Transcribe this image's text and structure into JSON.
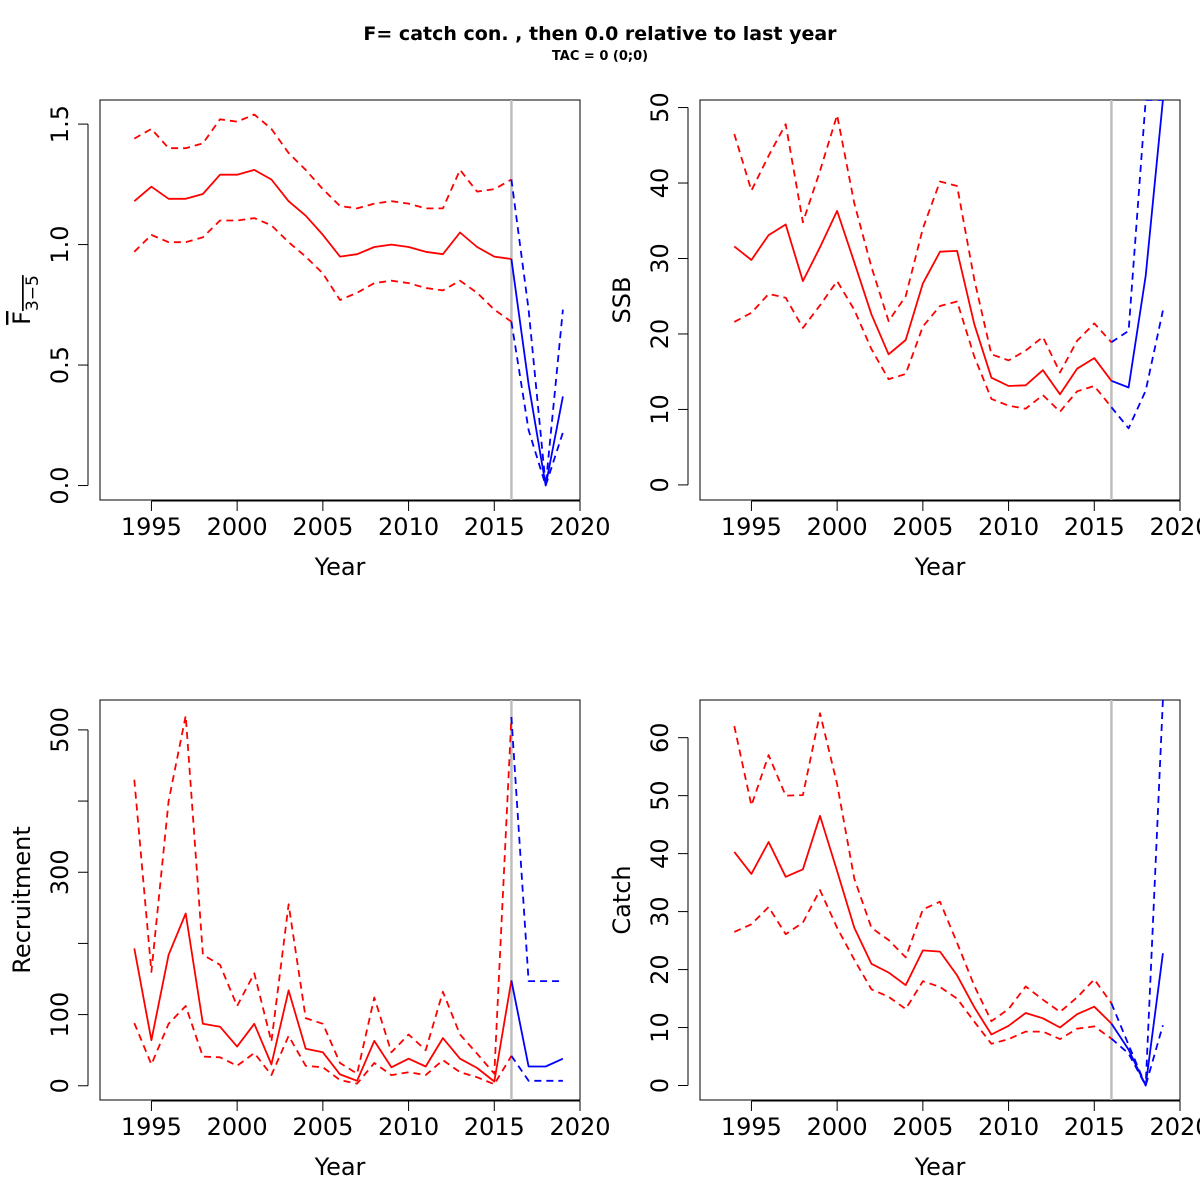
{
  "figure": {
    "title": "F= catch con. , then 0.0  relative to last year",
    "subtitle": "TAC = 0 (0;0)"
  },
  "colors": {
    "historic": "#ff0000",
    "forecast": "#0000ff",
    "divider": "#bebebe",
    "axis": "#000000"
  },
  "chart_data": [
    {
      "id": "fbar",
      "type": "line",
      "ylabel_main": "F",
      "ylabel_sub": "3−5",
      "xlabel": "Year",
      "xlim": [
        1992,
        2020
      ],
      "ylim": [
        -0.06,
        1.6
      ],
      "xticks": [
        1995,
        2000,
        2005,
        2010,
        2015,
        2020
      ],
      "yticks": [
        0,
        0.5,
        1,
        1.5
      ],
      "ytick_labels": [
        "0.0",
        "0.5",
        "1.0",
        "1.5"
      ],
      "divider_year": 2016,
      "series": [
        {
          "role": "historic",
          "style": "solid",
          "x": [
            1994,
            1995,
            1996,
            1997,
            1998,
            1999,
            2000,
            2001,
            2002,
            2003,
            2004,
            2005,
            2006,
            2007,
            2008,
            2009,
            2010,
            2011,
            2012,
            2013,
            2014,
            2015,
            2016
          ],
          "values": [
            1.18,
            1.24,
            1.19,
            1.19,
            1.21,
            1.29,
            1.29,
            1.31,
            1.27,
            1.18,
            1.12,
            1.04,
            0.95,
            0.96,
            0.99,
            1.0,
            0.99,
            0.97,
            0.96,
            1.05,
            0.99,
            0.95,
            0.94
          ]
        },
        {
          "role": "historic",
          "style": "dashed",
          "x": [
            1994,
            1995,
            1996,
            1997,
            1998,
            1999,
            2000,
            2001,
            2002,
            2003,
            2004,
            2005,
            2006,
            2007,
            2008,
            2009,
            2010,
            2011,
            2012,
            2013,
            2014,
            2015,
            2016
          ],
          "values": [
            1.44,
            1.48,
            1.4,
            1.4,
            1.42,
            1.52,
            1.51,
            1.54,
            1.48,
            1.38,
            1.31,
            1.23,
            1.16,
            1.15,
            1.17,
            1.18,
            1.17,
            1.15,
            1.15,
            1.31,
            1.22,
            1.23,
            1.27
          ]
        },
        {
          "role": "historic",
          "style": "dashed",
          "x": [
            1994,
            1995,
            1996,
            1997,
            1998,
            1999,
            2000,
            2001,
            2002,
            2003,
            2004,
            2005,
            2006,
            2007,
            2008,
            2009,
            2010,
            2011,
            2012,
            2013,
            2014,
            2015,
            2016
          ],
          "values": [
            0.97,
            1.04,
            1.01,
            1.01,
            1.03,
            1.1,
            1.1,
            1.11,
            1.08,
            1.01,
            0.95,
            0.88,
            0.77,
            0.8,
            0.84,
            0.85,
            0.84,
            0.82,
            0.81,
            0.85,
            0.8,
            0.73,
            0.68
          ]
        },
        {
          "role": "forecast",
          "style": "solid",
          "x": [
            2016,
            2017,
            2018,
            2019
          ],
          "values": [
            0.94,
            0.42,
            0.0,
            0.37
          ]
        },
        {
          "role": "forecast",
          "style": "dashed",
          "x": [
            2016,
            2017,
            2018,
            2019
          ],
          "values": [
            1.27,
            0.73,
            0.0,
            0.73
          ]
        },
        {
          "role": "forecast",
          "style": "dashed",
          "x": [
            2016,
            2017,
            2018,
            2019
          ],
          "values": [
            0.68,
            0.23,
            0.0,
            0.22
          ]
        }
      ]
    },
    {
      "id": "ssb",
      "type": "line",
      "ylabel_main": "SSB",
      "xlabel": "Year",
      "xlim": [
        1992,
        2020
      ],
      "ylim": [
        -2,
        51
      ],
      "xticks": [
        1995,
        2000,
        2005,
        2010,
        2015,
        2020
      ],
      "yticks": [
        0,
        10,
        20,
        30,
        40,
        50
      ],
      "ytick_labels": [
        "0",
        "10",
        "20",
        "30",
        "40",
        "50"
      ],
      "divider_year": 2016,
      "series": [
        {
          "role": "historic",
          "style": "solid",
          "x": [
            1994,
            1995,
            1996,
            1997,
            1998,
            1999,
            2000,
            2001,
            2002,
            2003,
            2004,
            2005,
            2006,
            2007,
            2008,
            2009,
            2010,
            2011,
            2012,
            2013,
            2014,
            2015,
            2016
          ],
          "values": [
            31.6,
            29.8,
            33.1,
            34.5,
            27.0,
            31.5,
            36.3,
            29.5,
            22.6,
            17.3,
            19.2,
            26.7,
            30.9,
            31.0,
            21.3,
            14.2,
            13.1,
            13.2,
            15.2,
            12.0,
            15.4,
            16.8,
            13.8
          ]
        },
        {
          "role": "historic",
          "style": "dashed",
          "x": [
            1994,
            1995,
            1996,
            1997,
            1998,
            1999,
            2000,
            2001,
            2002,
            2003,
            2004,
            2005,
            2006,
            2007,
            2008,
            2009,
            2010,
            2011,
            2012,
            2013,
            2014,
            2015,
            2016
          ],
          "values": [
            46.5,
            39.0,
            43.6,
            47.8,
            34.8,
            41.6,
            49.0,
            37.3,
            28.9,
            21.7,
            25.0,
            34.0,
            40.2,
            39.6,
            27.2,
            17.3,
            16.5,
            17.8,
            19.6,
            14.9,
            19.1,
            21.4,
            18.9
          ]
        },
        {
          "role": "historic",
          "style": "dashed",
          "x": [
            1994,
            1995,
            1996,
            1997,
            1998,
            1999,
            2000,
            2001,
            2002,
            2003,
            2004,
            2005,
            2006,
            2007,
            2008,
            2009,
            2010,
            2011,
            2012,
            2013,
            2014,
            2015,
            2016
          ],
          "values": [
            21.6,
            22.8,
            25.3,
            24.8,
            20.8,
            23.8,
            27.0,
            23.2,
            18.0,
            14.0,
            14.7,
            21.0,
            23.7,
            24.3,
            17.0,
            11.4,
            10.5,
            10.1,
            11.9,
            9.7,
            12.4,
            13.1,
            10.3
          ]
        },
        {
          "role": "forecast",
          "style": "solid",
          "x": [
            2016,
            2017,
            2018,
            2019
          ],
          "values": [
            13.8,
            12.9,
            27.7,
            51.0
          ]
        },
        {
          "role": "forecast",
          "style": "dashed",
          "x": [
            2016,
            2017,
            2018,
            2019
          ],
          "values": [
            18.9,
            20.4,
            51.0,
            51.0
          ]
        },
        {
          "role": "forecast",
          "style": "dashed",
          "x": [
            2016,
            2017,
            2018,
            2019
          ],
          "values": [
            10.3,
            7.5,
            12.5,
            23.1
          ]
        }
      ]
    },
    {
      "id": "recruitment",
      "type": "line",
      "ylabel_main": "Recruitment",
      "xlabel": "Year",
      "xlim": [
        1992,
        2020
      ],
      "ylim": [
        -20,
        542
      ],
      "xticks": [
        1995,
        2000,
        2005,
        2010,
        2015,
        2020
      ],
      "yticks": [
        0,
        100,
        200,
        300,
        400,
        500
      ],
      "ytick_labels": [
        "0",
        "100",
        "",
        "300",
        "",
        "500"
      ],
      "divider_year": 2016,
      "series": [
        {
          "role": "historic",
          "style": "solid",
          "x": [
            1994,
            1995,
            1996,
            1997,
            1998,
            1999,
            2000,
            2001,
            2002,
            2003,
            2004,
            2005,
            2006,
            2007,
            2008,
            2009,
            2010,
            2011,
            2012,
            2013,
            2014,
            2015,
            2016
          ],
          "values": [
            193,
            64,
            184,
            242,
            87,
            83,
            55,
            87,
            30,
            134,
            52,
            47,
            16,
            7,
            63,
            26,
            38,
            27,
            67,
            38,
            25,
            6,
            148
          ]
        },
        {
          "role": "historic",
          "style": "dashed",
          "x": [
            1994,
            1995,
            1996,
            1997,
            1998,
            1999,
            2000,
            2001,
            2002,
            2003,
            2004,
            2005,
            2006,
            2007,
            2008,
            2009,
            2010,
            2011,
            2012,
            2013,
            2014,
            2015,
            2016
          ],
          "values": [
            430,
            160,
            400,
            520,
            184,
            170,
            112,
            158,
            62,
            255,
            95,
            87,
            32,
            17,
            124,
            47,
            72,
            50,
            132,
            72,
            45,
            17,
            518
          ]
        },
        {
          "role": "historic",
          "style": "dashed",
          "x": [
            1994,
            1995,
            1996,
            1997,
            1998,
            1999,
            2000,
            2001,
            2002,
            2003,
            2004,
            2005,
            2006,
            2007,
            2008,
            2009,
            2010,
            2011,
            2012,
            2013,
            2014,
            2015,
            2016
          ],
          "values": [
            88,
            30,
            87,
            112,
            41,
            40,
            28,
            46,
            15,
            70,
            28,
            26,
            8,
            3,
            32,
            15,
            19,
            15,
            36,
            19,
            12,
            2,
            42
          ]
        },
        {
          "role": "forecast",
          "style": "solid",
          "x": [
            2016,
            2017,
            2018,
            2019
          ],
          "values": [
            148,
            27,
            27,
            38
          ]
        },
        {
          "role": "forecast",
          "style": "dashed",
          "x": [
            2016,
            2017,
            2018,
            2019
          ],
          "values": [
            518,
            147,
            147,
            147
          ]
        },
        {
          "role": "forecast",
          "style": "dashed",
          "x": [
            2016,
            2017,
            2018,
            2019
          ],
          "values": [
            42,
            7,
            7,
            7
          ]
        }
      ]
    },
    {
      "id": "catch",
      "type": "line",
      "ylabel_main": "Catch",
      "xlabel": "Year",
      "xlim": [
        1992,
        2020
      ],
      "ylim": [
        -2.5,
        66.5
      ],
      "xticks": [
        1995,
        2000,
        2005,
        2010,
        2015,
        2020
      ],
      "yticks": [
        0,
        10,
        20,
        30,
        40,
        50,
        60
      ],
      "ytick_labels": [
        "0",
        "10",
        "20",
        "30",
        "40",
        "50",
        "60"
      ],
      "divider_year": 2016,
      "series": [
        {
          "role": "historic",
          "style": "solid",
          "x": [
            1994,
            1995,
            1996,
            1997,
            1998,
            1999,
            2000,
            2001,
            2002,
            2003,
            2004,
            2005,
            2006,
            2007,
            2008,
            2009,
            2010,
            2011,
            2012,
            2013,
            2014,
            2015,
            2016
          ],
          "values": [
            40.3,
            36.5,
            42.0,
            36.0,
            37.3,
            46.5,
            37.0,
            27.2,
            21.0,
            19.5,
            17.3,
            23.3,
            23.1,
            19.0,
            13.5,
            8.8,
            10.3,
            12.5,
            11.6,
            10.0,
            12.3,
            13.6,
            10.7
          ]
        },
        {
          "role": "historic",
          "style": "dashed",
          "x": [
            1994,
            1995,
            1996,
            1997,
            1998,
            1999,
            2000,
            2001,
            2002,
            2003,
            2004,
            2005,
            2006,
            2007,
            2008,
            2009,
            2010,
            2011,
            2012,
            2013,
            2014,
            2015,
            2016
          ],
          "values": [
            62.0,
            48.3,
            57.0,
            50.0,
            50.1,
            64.2,
            52.0,
            35.7,
            27.2,
            25.1,
            22.1,
            30.4,
            31.7,
            24.6,
            17.2,
            11.1,
            13.2,
            17.1,
            14.8,
            12.7,
            15.2,
            18.3,
            14.2
          ]
        },
        {
          "role": "historic",
          "style": "dashed",
          "x": [
            1994,
            1995,
            1996,
            1997,
            1998,
            1999,
            2000,
            2001,
            2002,
            2003,
            2004,
            2005,
            2006,
            2007,
            2008,
            2009,
            2010,
            2011,
            2012,
            2013,
            2014,
            2015,
            2016
          ],
          "values": [
            26.5,
            27.8,
            30.8,
            26.1,
            28.1,
            33.7,
            27.2,
            21.7,
            16.6,
            15.3,
            13.2,
            18.0,
            17.0,
            15.0,
            11.0,
            7.2,
            8.0,
            9.3,
            9.3,
            8.0,
            9.8,
            10.2,
            8.1
          ]
        },
        {
          "role": "forecast",
          "style": "solid",
          "x": [
            2016,
            2017,
            2018,
            2019
          ],
          "values": [
            10.7,
            6.2,
            0.0,
            22.8
          ]
        },
        {
          "role": "forecast",
          "style": "dashed",
          "x": [
            2016,
            2017,
            2018,
            2019
          ],
          "values": [
            14.2,
            7.0,
            0.0,
            66.5
          ]
        },
        {
          "role": "forecast",
          "style": "dashed",
          "x": [
            2016,
            2017,
            2018,
            2019
          ],
          "values": [
            8.1,
            5.5,
            0.0,
            10.4
          ]
        }
      ]
    }
  ]
}
